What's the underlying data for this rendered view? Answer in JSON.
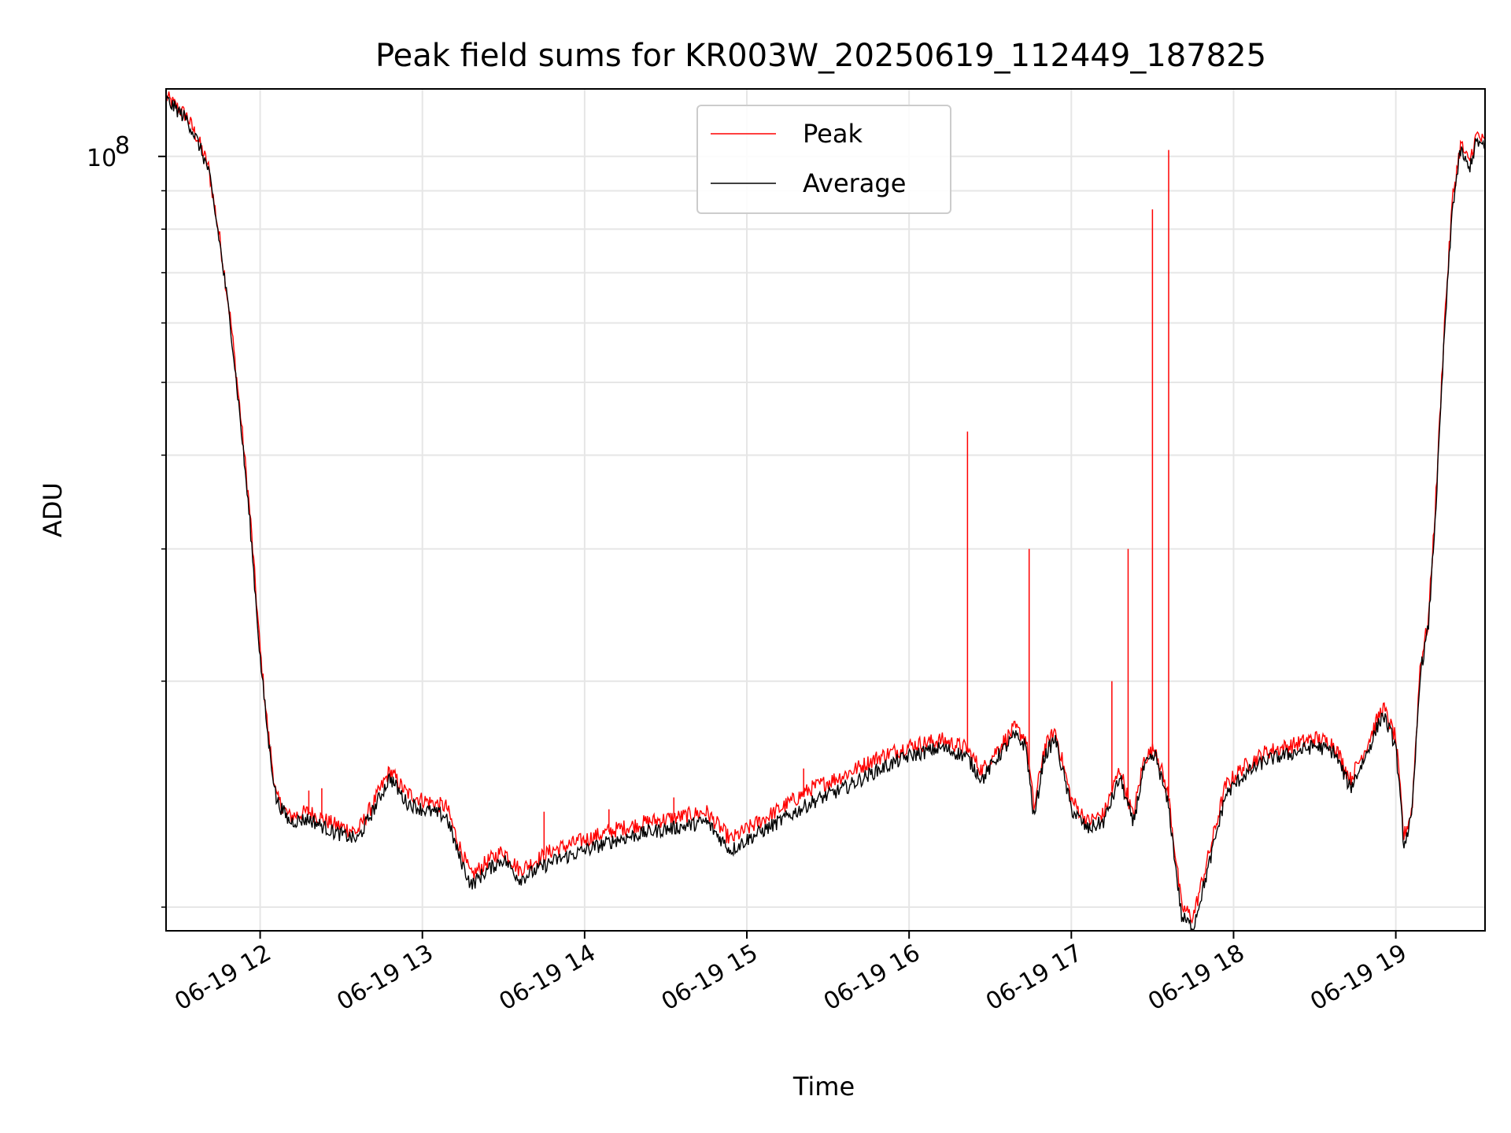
{
  "chart_data": {
    "type": "line",
    "title": "Peak field sums for KR003W_20250619_112449_187825",
    "xlabel": "Time",
    "ylabel": "ADU",
    "x_axis": {
      "kind": "time",
      "range_hours": [
        11.42,
        19.55
      ],
      "ticks": [
        {
          "hour": 12,
          "label": "06-19 12"
        },
        {
          "hour": 13,
          "label": "06-19 13"
        },
        {
          "hour": 14,
          "label": "06-19 14"
        },
        {
          "hour": 15,
          "label": "06-19 15"
        },
        {
          "hour": 16,
          "label": "06-19 16"
        },
        {
          "hour": 17,
          "label": "06-19 17"
        },
        {
          "hour": 18,
          "label": "06-19 18"
        },
        {
          "hour": 19,
          "label": "06-19 19"
        }
      ]
    },
    "y_axis": {
      "scale": "log",
      "range": [
        9300000,
        123000000
      ],
      "major_ticks": [
        {
          "value": 100000000,
          "base": "10",
          "exp": "8"
        }
      ],
      "minor_ticks": [
        10000000,
        20000000,
        30000000,
        40000000,
        50000000,
        60000000,
        70000000,
        80000000,
        90000000
      ]
    },
    "grid": true,
    "legend": {
      "position": "top-center"
    },
    "series": [
      {
        "name": "Peak",
        "color": "#ff0000",
        "base": [
          [
            11.42,
            120000000
          ],
          [
            11.55,
            113000000
          ],
          [
            11.62,
            105000000
          ],
          [
            11.68,
            97000000
          ],
          [
            11.75,
            78000000
          ],
          [
            11.82,
            60000000
          ],
          [
            11.88,
            45000000
          ],
          [
            11.94,
            33000000
          ],
          [
            12.0,
            22000000
          ],
          [
            12.05,
            17000000
          ],
          [
            12.1,
            14000000
          ],
          [
            12.18,
            13200000
          ],
          [
            12.3,
            13400000
          ],
          [
            12.45,
            12900000
          ],
          [
            12.6,
            12600000
          ],
          [
            12.7,
            13800000
          ],
          [
            12.8,
            15200000
          ],
          [
            12.9,
            14200000
          ],
          [
            13.0,
            13900000
          ],
          [
            13.15,
            13600000
          ],
          [
            13.22,
            12200000
          ],
          [
            13.3,
            11000000
          ],
          [
            13.4,
            11500000
          ],
          [
            13.5,
            11900000
          ],
          [
            13.6,
            11200000
          ],
          [
            13.8,
            11900000
          ],
          [
            14.0,
            12300000
          ],
          [
            14.2,
            12700000
          ],
          [
            14.4,
            13000000
          ],
          [
            14.6,
            13200000
          ],
          [
            14.75,
            13400000
          ],
          [
            14.9,
            12300000
          ],
          [
            15.0,
            12700000
          ],
          [
            15.2,
            13500000
          ],
          [
            15.4,
            14400000
          ],
          [
            15.6,
            15000000
          ],
          [
            15.8,
            15800000
          ],
          [
            16.0,
            16400000
          ],
          [
            16.2,
            16700000
          ],
          [
            16.35,
            16300000
          ],
          [
            16.45,
            15200000
          ],
          [
            16.55,
            16300000
          ],
          [
            16.65,
            17300000
          ],
          [
            16.72,
            16800000
          ],
          [
            16.77,
            13500000
          ],
          [
            16.83,
            16200000
          ],
          [
            16.9,
            17200000
          ],
          [
            17.0,
            13900000
          ],
          [
            17.1,
            13000000
          ],
          [
            17.2,
            13300000
          ],
          [
            17.3,
            15300000
          ],
          [
            17.38,
            13200000
          ],
          [
            17.45,
            15800000
          ],
          [
            17.52,
            16300000
          ],
          [
            17.6,
            14000000
          ],
          [
            17.68,
            10000000
          ],
          [
            17.75,
            9700000
          ],
          [
            17.85,
            11800000
          ],
          [
            17.95,
            14500000
          ],
          [
            18.05,
            15300000
          ],
          [
            18.2,
            16100000
          ],
          [
            18.35,
            16400000
          ],
          [
            18.5,
            16800000
          ],
          [
            18.62,
            16500000
          ],
          [
            18.72,
            14800000
          ],
          [
            18.82,
            16400000
          ],
          [
            18.92,
            18500000
          ],
          [
            19.0,
            16800000
          ],
          [
            19.05,
            12400000
          ],
          [
            19.1,
            13500000
          ],
          [
            19.15,
            21000000
          ],
          [
            19.2,
            24000000
          ],
          [
            19.25,
            36000000
          ],
          [
            19.3,
            60000000
          ],
          [
            19.35,
            88000000
          ],
          [
            19.4,
            104000000
          ],
          [
            19.45,
            98000000
          ],
          [
            19.5,
            107000000
          ],
          [
            19.55,
            104000000
          ]
        ],
        "spikes": [
          [
            16.36,
            43000000
          ],
          [
            16.74,
            30000000
          ],
          [
            17.25,
            20000000
          ],
          [
            17.35,
            30000000
          ],
          [
            17.5,
            85000000
          ],
          [
            17.6,
            102000000
          ],
          [
            12.3,
            14300000
          ],
          [
            12.38,
            14400000
          ],
          [
            13.75,
            13400000
          ],
          [
            14.15,
            13500000
          ],
          [
            14.55,
            14000000
          ],
          [
            15.35,
            15300000
          ]
        ]
      },
      {
        "name": "Average",
        "color": "#000000",
        "base": [
          [
            11.42,
            119000000
          ],
          [
            11.55,
            112000000
          ],
          [
            11.62,
            104000000
          ],
          [
            11.68,
            96000000
          ],
          [
            11.75,
            77000000
          ],
          [
            11.82,
            59000000
          ],
          [
            11.88,
            44000000
          ],
          [
            11.94,
            32000000
          ],
          [
            12.0,
            21500000
          ],
          [
            12.05,
            16700000
          ],
          [
            12.1,
            13900000
          ],
          [
            12.18,
            13000000
          ],
          [
            12.3,
            13100000
          ],
          [
            12.45,
            12600000
          ],
          [
            12.6,
            12300000
          ],
          [
            12.7,
            13500000
          ],
          [
            12.8,
            14900000
          ],
          [
            12.9,
            13800000
          ],
          [
            13.0,
            13500000
          ],
          [
            13.15,
            13200000
          ],
          [
            13.22,
            11800000
          ],
          [
            13.3,
            10700000
          ],
          [
            13.4,
            11200000
          ],
          [
            13.5,
            11600000
          ],
          [
            13.6,
            10900000
          ],
          [
            13.8,
            11500000
          ],
          [
            14.0,
            11900000
          ],
          [
            14.2,
            12300000
          ],
          [
            14.4,
            12600000
          ],
          [
            14.6,
            12800000
          ],
          [
            14.75,
            13000000
          ],
          [
            14.9,
            11900000
          ],
          [
            15.0,
            12300000
          ],
          [
            15.2,
            13000000
          ],
          [
            15.4,
            13800000
          ],
          [
            15.6,
            14400000
          ],
          [
            15.8,
            15200000
          ],
          [
            16.0,
            15900000
          ],
          [
            16.2,
            16300000
          ],
          [
            16.35,
            15900000
          ],
          [
            16.45,
            14800000
          ],
          [
            16.55,
            15900000
          ],
          [
            16.65,
            16900000
          ],
          [
            16.72,
            16400000
          ],
          [
            16.77,
            13100000
          ],
          [
            16.83,
            15800000
          ],
          [
            16.9,
            16800000
          ],
          [
            17.0,
            13500000
          ],
          [
            17.1,
            12700000
          ],
          [
            17.2,
            13000000
          ],
          [
            17.3,
            14900000
          ],
          [
            17.38,
            12900000
          ],
          [
            17.45,
            15400000
          ],
          [
            17.52,
            15900000
          ],
          [
            17.6,
            13600000
          ],
          [
            17.68,
            9700000
          ],
          [
            17.75,
            9400000
          ],
          [
            17.85,
            11400000
          ],
          [
            17.95,
            14100000
          ],
          [
            18.05,
            14900000
          ],
          [
            18.2,
            15700000
          ],
          [
            18.35,
            16000000
          ],
          [
            18.5,
            16400000
          ],
          [
            18.62,
            16100000
          ],
          [
            18.72,
            14400000
          ],
          [
            18.82,
            16000000
          ],
          [
            18.92,
            18100000
          ],
          [
            19.0,
            16400000
          ],
          [
            19.05,
            12100000
          ],
          [
            19.1,
            13200000
          ],
          [
            19.15,
            20500000
          ],
          [
            19.2,
            23500000
          ],
          [
            19.25,
            35000000
          ],
          [
            19.3,
            58000000
          ],
          [
            19.35,
            86000000
          ],
          [
            19.4,
            102000000
          ],
          [
            19.45,
            96000000
          ],
          [
            19.5,
            105000000
          ],
          [
            19.55,
            102000000
          ]
        ]
      }
    ]
  }
}
